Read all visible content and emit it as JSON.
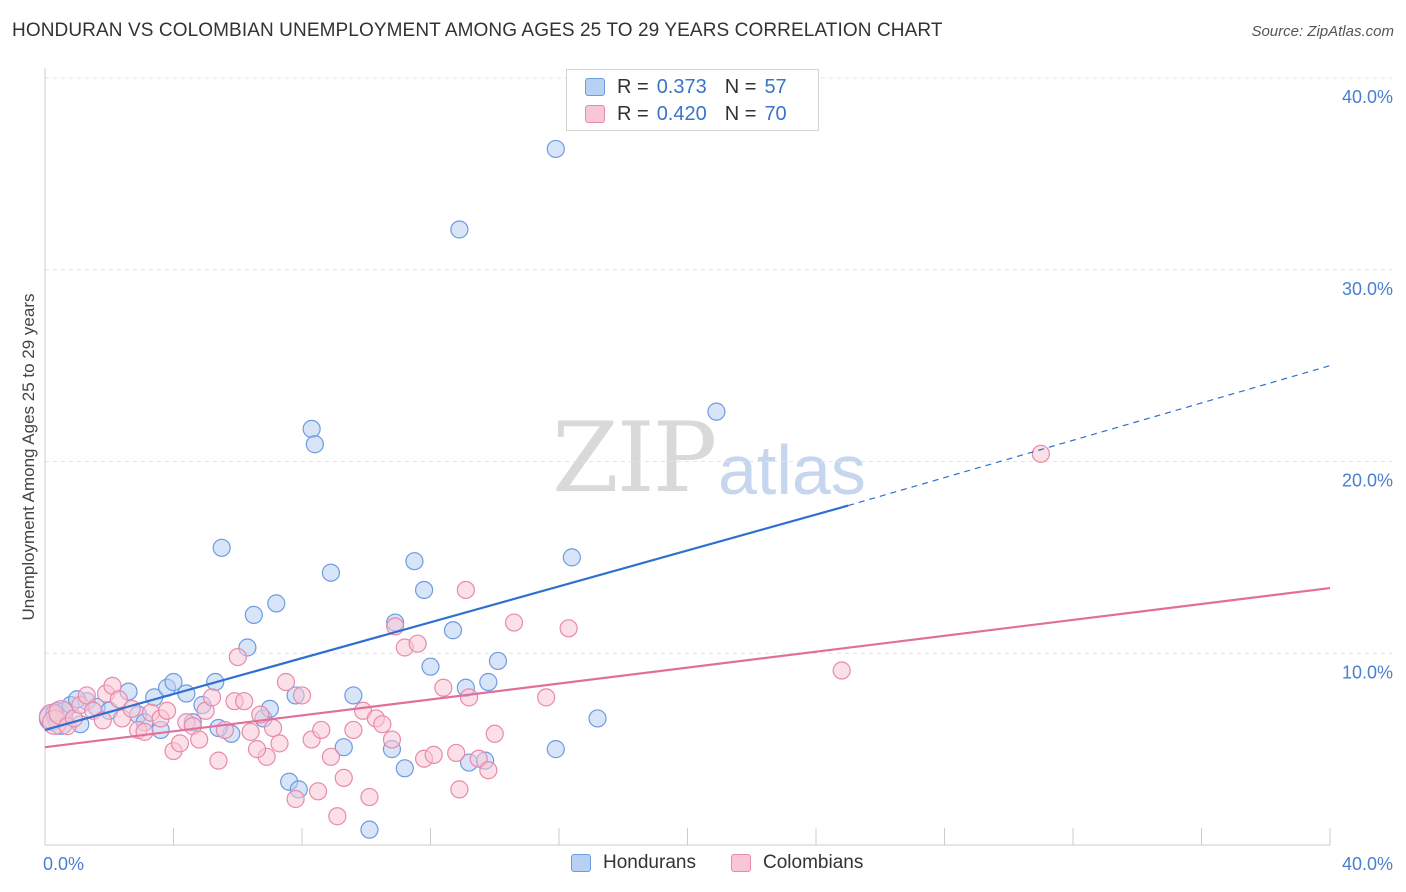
{
  "chart_data": {
    "type": "scatter",
    "title": "HONDURAN VS COLOMBIAN UNEMPLOYMENT AMONG AGES 25 TO 29 YEARS CORRELATION CHART",
    "source": "Source: ZipAtlas.com",
    "xlabel": "",
    "ylabel": "Unemployment Among Ages 25 to 29 years",
    "xlim": [
      0,
      40
    ],
    "ylim": [
      0,
      40
    ],
    "x_tick_labels": [
      "0.0%",
      "40.0%"
    ],
    "y_ticks": [
      10,
      20,
      30,
      40
    ],
    "y_tick_labels": [
      "10.0%",
      "20.0%",
      "30.0%",
      "40.0%"
    ],
    "grid": true,
    "watermark": {
      "zip": "ZIP",
      "atlas": "atlas"
    },
    "legend": {
      "position": "top-center",
      "entries": [
        {
          "name": "Hondurans",
          "r_label": "R =",
          "r_value": "0.373",
          "n_label": "N =",
          "n_value": "57",
          "fill": "#b8d0f2",
          "stroke": "#6e9be0"
        },
        {
          "name": "Colombians",
          "r_label": "R =",
          "r_value": "0.420",
          "n_label": "N =",
          "n_value": "70",
          "fill": "#f9c6d6",
          "stroke": "#e88aa9"
        }
      ]
    },
    "series": [
      {
        "name": "Hondurans",
        "color": "#2f6fcf",
        "point_fill": "#b8d0f2",
        "point_stroke": "#6e9be0",
        "trend": {
          "x0": 0,
          "y0": 6.0,
          "x1": 25,
          "y1": 17.7,
          "dash_to_x": 40,
          "dash_to_y": 25.0
        },
        "points": [
          [
            0.2,
            6.6
          ],
          [
            0.4,
            6.8
          ],
          [
            0.5,
            6.4
          ],
          [
            0.6,
            7.0
          ],
          [
            0.8,
            7.3
          ],
          [
            1.1,
            6.3
          ],
          [
            1.3,
            7.5
          ],
          [
            1.6,
            7.2
          ],
          [
            2.0,
            7.0
          ],
          [
            2.6,
            8.0
          ],
          [
            2.9,
            6.8
          ],
          [
            3.1,
            6.4
          ],
          [
            3.4,
            7.7
          ],
          [
            3.6,
            6.0
          ],
          [
            3.8,
            8.2
          ],
          [
            4.0,
            8.5
          ],
          [
            4.4,
            7.9
          ],
          [
            4.6,
            6.4
          ],
          [
            4.9,
            7.3
          ],
          [
            5.3,
            8.5
          ],
          [
            5.5,
            15.5
          ],
          [
            5.8,
            5.8
          ],
          [
            6.3,
            10.3
          ],
          [
            6.5,
            12.0
          ],
          [
            6.8,
            6.6
          ],
          [
            7.0,
            7.1
          ],
          [
            7.2,
            12.6
          ],
          [
            7.6,
            3.3
          ],
          [
            7.8,
            7.8
          ],
          [
            7.9,
            2.9
          ],
          [
            8.3,
            21.7
          ],
          [
            8.4,
            20.9
          ],
          [
            8.9,
            14.2
          ],
          [
            9.3,
            5.1
          ],
          [
            9.6,
            7.8
          ],
          [
            10.1,
            0.8
          ],
          [
            10.8,
            5.0
          ],
          [
            10.9,
            11.6
          ],
          [
            11.2,
            4.0
          ],
          [
            11.5,
            14.8
          ],
          [
            11.8,
            13.3
          ],
          [
            12.0,
            9.3
          ],
          [
            12.7,
            11.2
          ],
          [
            12.9,
            32.1
          ],
          [
            13.1,
            8.2
          ],
          [
            13.2,
            4.3
          ],
          [
            13.7,
            4.4
          ],
          [
            13.8,
            8.5
          ],
          [
            14.1,
            9.6
          ],
          [
            15.9,
            36.3
          ],
          [
            15.9,
            5.0
          ],
          [
            16.4,
            15.0
          ],
          [
            17.2,
            6.6
          ],
          [
            20.9,
            22.6
          ],
          [
            0.3,
            6.9
          ],
          [
            1.0,
            7.6
          ],
          [
            5.4,
            6.1
          ]
        ]
      },
      {
        "name": "Colombians",
        "color": "#e0709a",
        "point_fill": "#f9c6d6",
        "point_stroke": "#e88aa9",
        "trend": {
          "x0": 0,
          "y0": 5.1,
          "x1": 40,
          "y1": 13.4
        },
        "points": [
          [
            0.2,
            6.7
          ],
          [
            0.3,
            6.4
          ],
          [
            0.5,
            6.9
          ],
          [
            0.7,
            6.2
          ],
          [
            0.9,
            6.6
          ],
          [
            1.1,
            7.3
          ],
          [
            1.3,
            7.8
          ],
          [
            1.5,
            7.0
          ],
          [
            1.8,
            6.5
          ],
          [
            1.9,
            7.9
          ],
          [
            2.1,
            8.3
          ],
          [
            2.4,
            6.6
          ],
          [
            2.7,
            7.1
          ],
          [
            2.9,
            6.0
          ],
          [
            3.1,
            5.9
          ],
          [
            3.3,
            6.9
          ],
          [
            3.6,
            6.6
          ],
          [
            3.8,
            7.0
          ],
          [
            4.0,
            4.9
          ],
          [
            4.2,
            5.3
          ],
          [
            4.4,
            6.4
          ],
          [
            4.6,
            6.2
          ],
          [
            4.8,
            5.5
          ],
          [
            5.0,
            7.0
          ],
          [
            5.2,
            7.7
          ],
          [
            5.4,
            4.4
          ],
          [
            5.6,
            6.0
          ],
          [
            5.9,
            7.5
          ],
          [
            6.0,
            9.8
          ],
          [
            6.2,
            7.5
          ],
          [
            6.4,
            5.9
          ],
          [
            6.7,
            6.8
          ],
          [
            6.9,
            4.6
          ],
          [
            7.1,
            6.1
          ],
          [
            7.3,
            5.3
          ],
          [
            7.5,
            8.5
          ],
          [
            7.8,
            2.4
          ],
          [
            8.0,
            7.8
          ],
          [
            8.3,
            5.5
          ],
          [
            8.5,
            2.8
          ],
          [
            8.6,
            6.0
          ],
          [
            8.9,
            4.6
          ],
          [
            9.1,
            1.5
          ],
          [
            9.3,
            3.5
          ],
          [
            9.6,
            6.0
          ],
          [
            9.9,
            7.0
          ],
          [
            10.1,
            2.5
          ],
          [
            10.3,
            6.6
          ],
          [
            10.5,
            6.3
          ],
          [
            10.8,
            5.5
          ],
          [
            10.9,
            11.4
          ],
          [
            11.2,
            10.3
          ],
          [
            11.6,
            10.5
          ],
          [
            11.8,
            4.5
          ],
          [
            12.1,
            4.7
          ],
          [
            12.4,
            8.2
          ],
          [
            12.8,
            4.8
          ],
          [
            12.9,
            2.9
          ],
          [
            13.1,
            13.3
          ],
          [
            13.2,
            7.7
          ],
          [
            13.5,
            4.5
          ],
          [
            13.8,
            3.9
          ],
          [
            14.0,
            5.8
          ],
          [
            14.6,
            11.6
          ],
          [
            15.6,
            7.7
          ],
          [
            16.3,
            11.3
          ],
          [
            24.8,
            9.1
          ],
          [
            31.0,
            20.4
          ],
          [
            2.3,
            7.6
          ],
          [
            6.6,
            5.0
          ]
        ]
      }
    ]
  }
}
